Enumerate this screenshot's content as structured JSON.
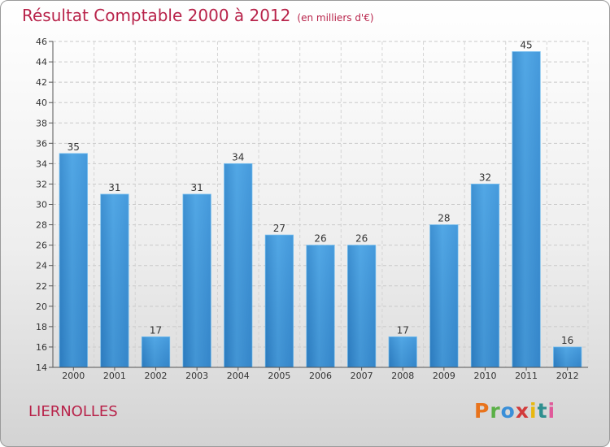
{
  "header": {
    "title": "Résultat Comptable 2000 à 2012",
    "subtitle": "(en milliers d'€)"
  },
  "footer": {
    "place": "LIERNOLLES",
    "logo": "Proxiti",
    "logo_colors": [
      "#e8731c",
      "#5bb047",
      "#3a8fd8",
      "#d23b3b",
      "#e8b80f",
      "#2f8f8f",
      "#e05a9a"
    ]
  },
  "chart_data": {
    "type": "bar",
    "title": "Résultat Comptable 2000 à 2012",
    "subtitle": "(en milliers d'€)",
    "xlabel": "",
    "ylabel": "",
    "categories": [
      "2000",
      "2001",
      "2002",
      "2003",
      "2004",
      "2005",
      "2006",
      "2007",
      "2008",
      "2009",
      "2010",
      "2011",
      "2012"
    ],
    "values": [
      35,
      31,
      17,
      31,
      34,
      27,
      26,
      26,
      17,
      28,
      32,
      45,
      16
    ],
    "ylim": [
      14,
      46
    ],
    "yticks": [
      14,
      16,
      18,
      20,
      22,
      24,
      26,
      28,
      30,
      32,
      34,
      36,
      38,
      40,
      42,
      44,
      46
    ],
    "grid": true,
    "bar_color": "#3f94d8",
    "data_labels": true
  }
}
